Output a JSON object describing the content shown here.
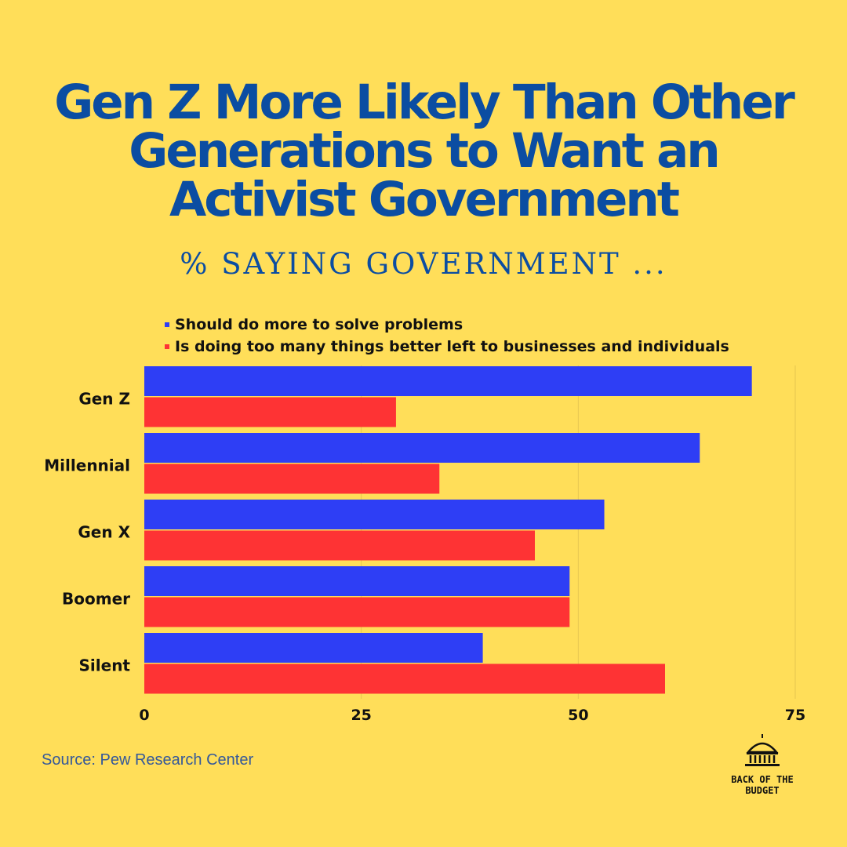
{
  "title": "Gen Z More Likely Than Other Generations to Want an Activist Government",
  "subtitle": "% SAYING GOVERNMENT ...",
  "source": "Source: Pew Research Center",
  "logo": {
    "line1": "BACK OF THE",
    "line2": "BUDGET",
    "icon": "capitol-dome-icon"
  },
  "colors": {
    "background": "#ffde59",
    "title": "#0b4da2",
    "series_more": "#2e3ef5",
    "series_less": "#fe3334"
  },
  "chart_data": {
    "type": "bar",
    "orientation": "horizontal",
    "categories": [
      "Gen Z",
      "Millennial",
      "Gen X",
      "Boomer",
      "Silent"
    ],
    "series": [
      {
        "name": "Should do more to solve problems",
        "values": [
          70,
          64,
          53,
          49,
          39
        ],
        "color": "#2e3ef5"
      },
      {
        "name": "Is doing too many things better left to businesses and individuals",
        "values": [
          29,
          34,
          45,
          49,
          60
        ],
        "color": "#fe3334"
      }
    ],
    "xlim": [
      0,
      75
    ],
    "xticks": [
      "0",
      "25",
      "50",
      "75"
    ],
    "grid": true,
    "legend_position": "top"
  }
}
